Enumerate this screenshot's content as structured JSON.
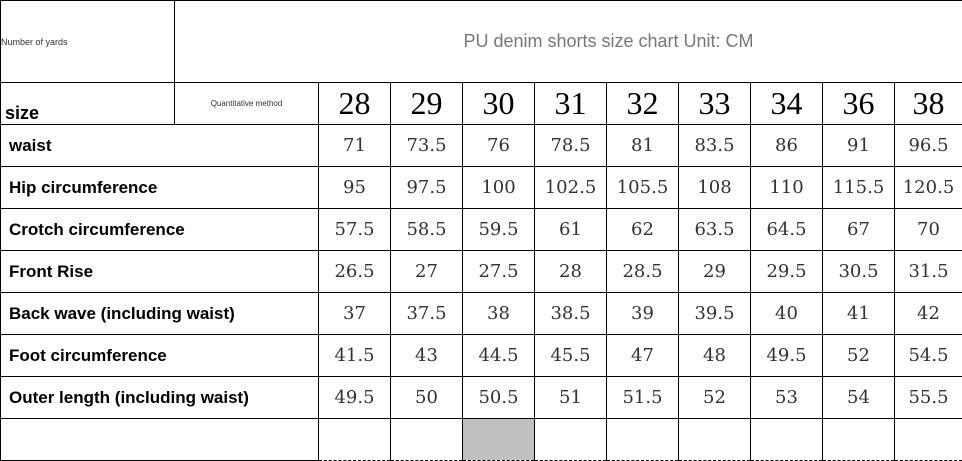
{
  "header": {
    "corner_label": "Number of yards",
    "title": "PU denim shorts size chart Unit: CM",
    "size_label": "size",
    "method_label": "Quantitative method"
  },
  "sizes": [
    "28",
    "29",
    "30",
    "31",
    "32",
    "33",
    "34",
    "36",
    "38"
  ],
  "rows": [
    {
      "label": "waist",
      "values": [
        "71",
        "73.5",
        "76",
        "78.5",
        "81",
        "83.5",
        "86",
        "91",
        "96.5"
      ]
    },
    {
      "label": "Hip circumference",
      "values": [
        "95",
        "97.5",
        "100",
        "102.5",
        "105.5",
        "108",
        "110",
        "115.5",
        "120.5"
      ]
    },
    {
      "label": "Crotch circumference",
      "values": [
        "57.5",
        "58.5",
        "59.5",
        "61",
        "62",
        "63.5",
        "64.5",
        "67",
        "70"
      ]
    },
    {
      "label": "Front Rise",
      "values": [
        "26.5",
        "27",
        "27.5",
        "28",
        "28.5",
        "29",
        "29.5",
        "30.5",
        "31.5"
      ]
    },
    {
      "label": "Back wave (including waist)",
      "values": [
        "37",
        "37.5",
        "38",
        "38.5",
        "39",
        "39.5",
        "40",
        "41",
        "42"
      ]
    },
    {
      "label": "Foot circumference",
      "values": [
        "41.5",
        "43",
        "44.5",
        "45.5",
        "47",
        "48",
        "49.5",
        "52",
        "54.5"
      ]
    },
    {
      "label": "Outer length (including waist)",
      "values": [
        "49.5",
        "50",
        "50.5",
        "51",
        "51.5",
        "52",
        "53",
        "54",
        "55.5"
      ]
    }
  ],
  "colors": {
    "highlight_cell": "#c0c0c0",
    "title_text": "#777777"
  }
}
